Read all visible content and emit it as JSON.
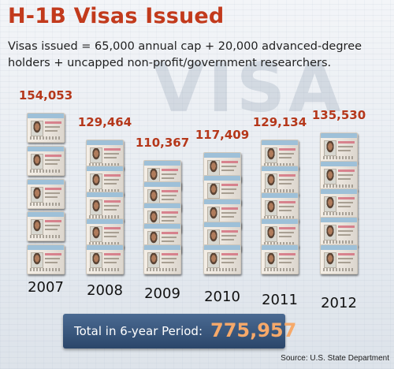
{
  "header": {
    "title": "H-1B Visas Issued",
    "subtitle": "Visas issued = 65,000 annual cap + 20,000 advanced-degree holders + uncapped non-profit/government researchers.",
    "background_word": "VISA"
  },
  "chart_data": {
    "type": "bar",
    "categories": [
      "2007",
      "2008",
      "2009",
      "2010",
      "2011",
      "2012"
    ],
    "values": [
      154053,
      129464,
      110367,
      117409,
      129134,
      135530
    ],
    "value_labels": [
      "154,053",
      "129,464",
      "110,367",
      "117,409",
      "129,134",
      "135,530"
    ],
    "title": "H-1B Visas Issued"
  },
  "total": {
    "label": "Total in 6-year Period:",
    "value": "775,957"
  },
  "source": "Source: U.S. State Department",
  "colors": {
    "title": "#c23a1c",
    "value_label": "#b5371a",
    "total_box": "#2b466a",
    "total_value": "#f6a96a"
  }
}
